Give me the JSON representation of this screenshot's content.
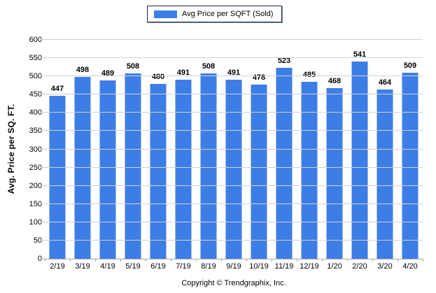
{
  "legend": {
    "label": "Avg Price per SQFT (Sold)"
  },
  "footer": {
    "text": "Copyright © Trendgraphix, Inc."
  },
  "colors": {
    "bar": "#3d7ee6",
    "gridline": "#d0d0d0",
    "axis": "#a9a9a9",
    "legend_border": "#1f2d4d",
    "text": "#000000"
  },
  "chart_data": {
    "type": "bar",
    "title": "",
    "series_name": "Avg Price per SQFT (Sold)",
    "categories": [
      "2/19",
      "3/19",
      "4/19",
      "5/19",
      "6/19",
      "7/19",
      "8/19",
      "9/19",
      "10/19",
      "11/19",
      "12/19",
      "1/20",
      "2/20",
      "3/20",
      "4/20"
    ],
    "values": [
      447,
      498,
      489,
      508,
      480,
      491,
      508,
      491,
      478,
      523,
      485,
      468,
      541,
      464,
      509
    ],
    "xlabel": "",
    "ylabel": "Avg. Price per SQ. FT.",
    "ylim": [
      0,
      600
    ],
    "ytick_step": 50,
    "grid": true,
    "legend_position": "top-center",
    "data_labels": true
  }
}
